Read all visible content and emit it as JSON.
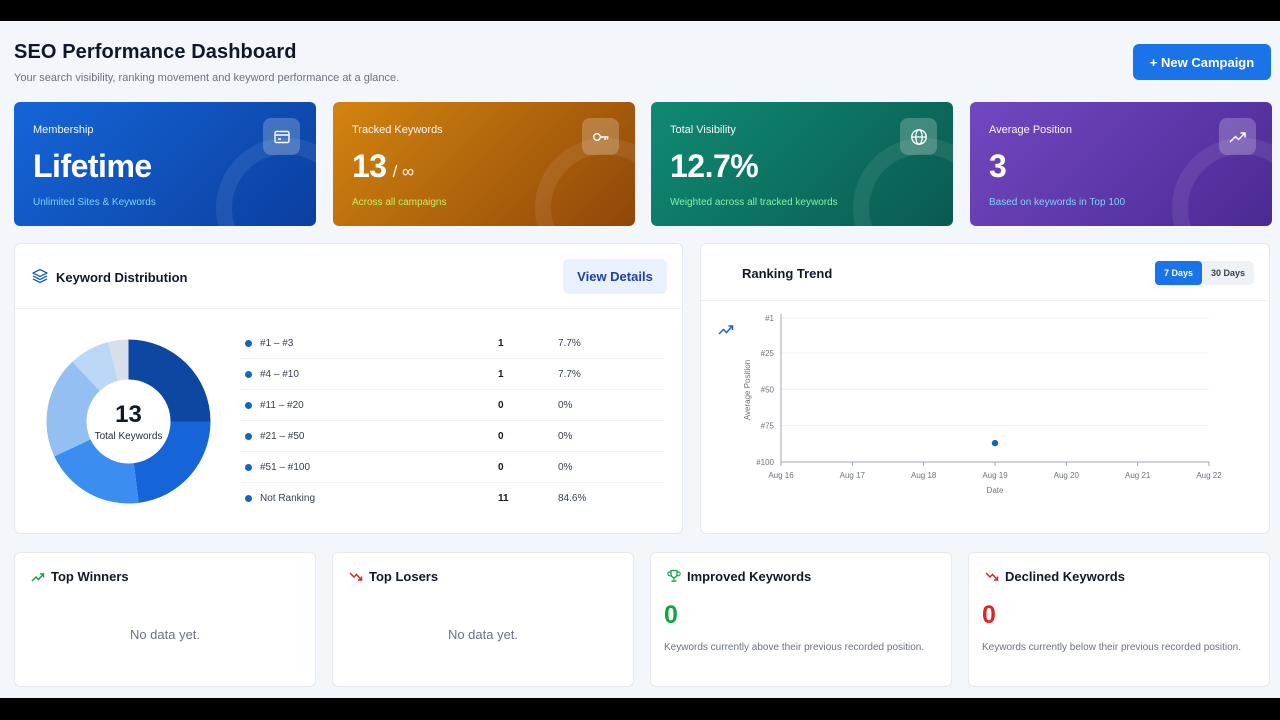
{
  "header": {
    "title": "SEO Performance Dashboard",
    "subtitle": "Your search visibility, ranking movement and keyword performance at a glance.",
    "new_campaign": "+ New Campaign"
  },
  "stats": [
    {
      "label": "Membership",
      "value": "Lifetime",
      "suffix": "",
      "note": "Unlimited Sites & Keywords",
      "icon": "card-icon",
      "gradient": [
        "#1565d8",
        "#0b3f9e"
      ],
      "note_color": "#7dd3fc"
    },
    {
      "label": "Tracked Keywords",
      "value": "13",
      "suffix": "/ ∞",
      "note": "Across all campaigns",
      "icon": "key-icon",
      "gradient": [
        "#d48410",
        "#8f4708"
      ],
      "note_color": "#bef264"
    },
    {
      "label": "Total Visibility",
      "value": "12.7%",
      "suffix": "",
      "note": "Weighted across all tracked keywords",
      "icon": "globe-icon",
      "gradient": [
        "#0f8a72",
        "#0a5a50"
      ],
      "note_color": "#86efac"
    },
    {
      "label": "Average Position",
      "value": "3",
      "suffix": "",
      "note": "Based on keywords in Top 100",
      "icon": "trend-up-icon",
      "gradient": [
        "#7347c0",
        "#4b2a94"
      ],
      "note_color": "#7dd3fc"
    }
  ],
  "distribution": {
    "title": "Keyword Distribution",
    "view_details": "View Details",
    "total": "13",
    "total_label": "Total Keywords",
    "rows": [
      {
        "name": "#1 – #3",
        "count": "1",
        "percent": "7.7%"
      },
      {
        "name": "#4 – #10",
        "count": "1",
        "percent": "7.7%"
      },
      {
        "name": "#11 – #20",
        "count": "0",
        "percent": "0%"
      },
      {
        "name": "#21 – #50",
        "count": "0",
        "percent": "0%"
      },
      {
        "name": "#51 – #100",
        "count": "0",
        "percent": "0%"
      },
      {
        "name": "Not Ranking",
        "count": "11",
        "percent": "84.6%"
      }
    ]
  },
  "trend": {
    "title": "Ranking Trend",
    "tabs": [
      "7 Days",
      "30 Days"
    ],
    "active_tab": "7 Days"
  },
  "bottom": {
    "winners": {
      "title": "Top Winners",
      "empty": "No data yet."
    },
    "losers": {
      "title": "Top Losers",
      "empty": "No data yet."
    },
    "improved": {
      "title": "Improved Keywords",
      "value": "0",
      "desc": "Keywords currently above their previous recorded position.",
      "color": "#16a34a"
    },
    "declined": {
      "title": "Declined Keywords",
      "value": "0",
      "desc": "Keywords currently below their previous recorded position.",
      "color": "#dc2626"
    }
  },
  "chart_data": [
    {
      "type": "pie",
      "donut": true,
      "title": "",
      "categories": [
        "segment 1",
        "segment 2",
        "segment 3",
        "segment 4",
        "segment 5",
        "segment 6"
      ],
      "values": [
        25,
        23,
        20,
        20,
        8,
        4
      ],
      "colors": [
        "#0d47a1",
        "#1565d8",
        "#3b8ef0",
        "#93bff2",
        "#bcd6f5",
        "#d7dfea"
      ]
    },
    {
      "type": "scatter",
      "title": "",
      "xlabel": "Date",
      "ylabel": "Average Position",
      "x_ticks": [
        "Aug 16",
        "Aug 17",
        "Aug 18",
        "Aug 19",
        "Aug 20",
        "Aug 21",
        "Aug 22"
      ],
      "y_ticks": [
        "#1",
        "#25",
        "#50",
        "#75",
        "#100"
      ],
      "y_tick_values": [
        1,
        25,
        50,
        75,
        100
      ],
      "ylim": [
        1,
        100
      ],
      "y_inverted": true,
      "grid": true,
      "series": [
        {
          "x": [
            "Aug 19"
          ],
          "y": [
            87
          ]
        }
      ],
      "point_color": "#1565c0"
    }
  ]
}
